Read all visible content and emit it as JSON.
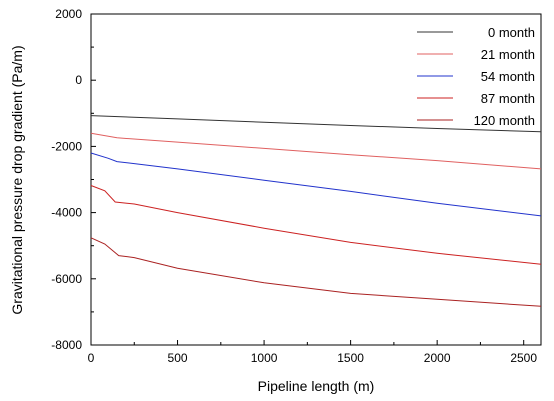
{
  "chart_data": {
    "type": "line",
    "title": "",
    "xlabel": "Pipeline length (m)",
    "ylabel": "Gravitational pressure drop gradient (Pa/m)",
    "xlim": [
      0,
      2600
    ],
    "ylim": [
      -8000,
      2000
    ],
    "xticks": [
      0,
      500,
      1000,
      1500,
      2000,
      2500
    ],
    "xtick_labels": [
      "0",
      "500",
      "1000",
      "1500",
      "2000",
      "2500"
    ],
    "yticks": [
      -8000,
      -6000,
      -4000,
      -2000,
      0,
      2000
    ],
    "ytick_labels": [
      "-8000",
      "-6000",
      "-4000",
      "-2000",
      "0",
      "2000"
    ],
    "grid": false,
    "legend_position": "top-right",
    "series": [
      {
        "name": "0 month",
        "color": "#333333",
        "points": [
          [
            0,
            -1070
          ],
          [
            500,
            -1170
          ],
          [
            1000,
            -1270
          ],
          [
            1500,
            -1370
          ],
          [
            2000,
            -1460
          ],
          [
            2600,
            -1560
          ]
        ]
      },
      {
        "name": "21 month",
        "color": "#e06060",
        "points": [
          [
            0,
            -1600
          ],
          [
            150,
            -1740
          ],
          [
            500,
            -1870
          ],
          [
            1000,
            -2060
          ],
          [
            1500,
            -2250
          ],
          [
            2000,
            -2430
          ],
          [
            2600,
            -2680
          ]
        ]
      },
      {
        "name": "54 month",
        "color": "#2233cc",
        "points": [
          [
            0,
            -2200
          ],
          [
            100,
            -2360
          ],
          [
            150,
            -2460
          ],
          [
            250,
            -2520
          ],
          [
            500,
            -2680
          ],
          [
            1000,
            -3020
          ],
          [
            1500,
            -3360
          ],
          [
            2000,
            -3720
          ],
          [
            2600,
            -4100
          ]
        ]
      },
      {
        "name": "87 month",
        "color": "#cc2222",
        "points": [
          [
            0,
            -3180
          ],
          [
            80,
            -3340
          ],
          [
            140,
            -3680
          ],
          [
            250,
            -3740
          ],
          [
            500,
            -4000
          ],
          [
            1000,
            -4470
          ],
          [
            1500,
            -4900
          ],
          [
            2000,
            -5230
          ],
          [
            2600,
            -5560
          ]
        ]
      },
      {
        "name": "120 month",
        "color": "#aa2222",
        "points": [
          [
            0,
            -4760
          ],
          [
            80,
            -4950
          ],
          [
            160,
            -5300
          ],
          [
            250,
            -5360
          ],
          [
            500,
            -5680
          ],
          [
            1000,
            -6120
          ],
          [
            1500,
            -6440
          ],
          [
            2000,
            -6620
          ],
          [
            2600,
            -6830
          ]
        ]
      }
    ]
  }
}
